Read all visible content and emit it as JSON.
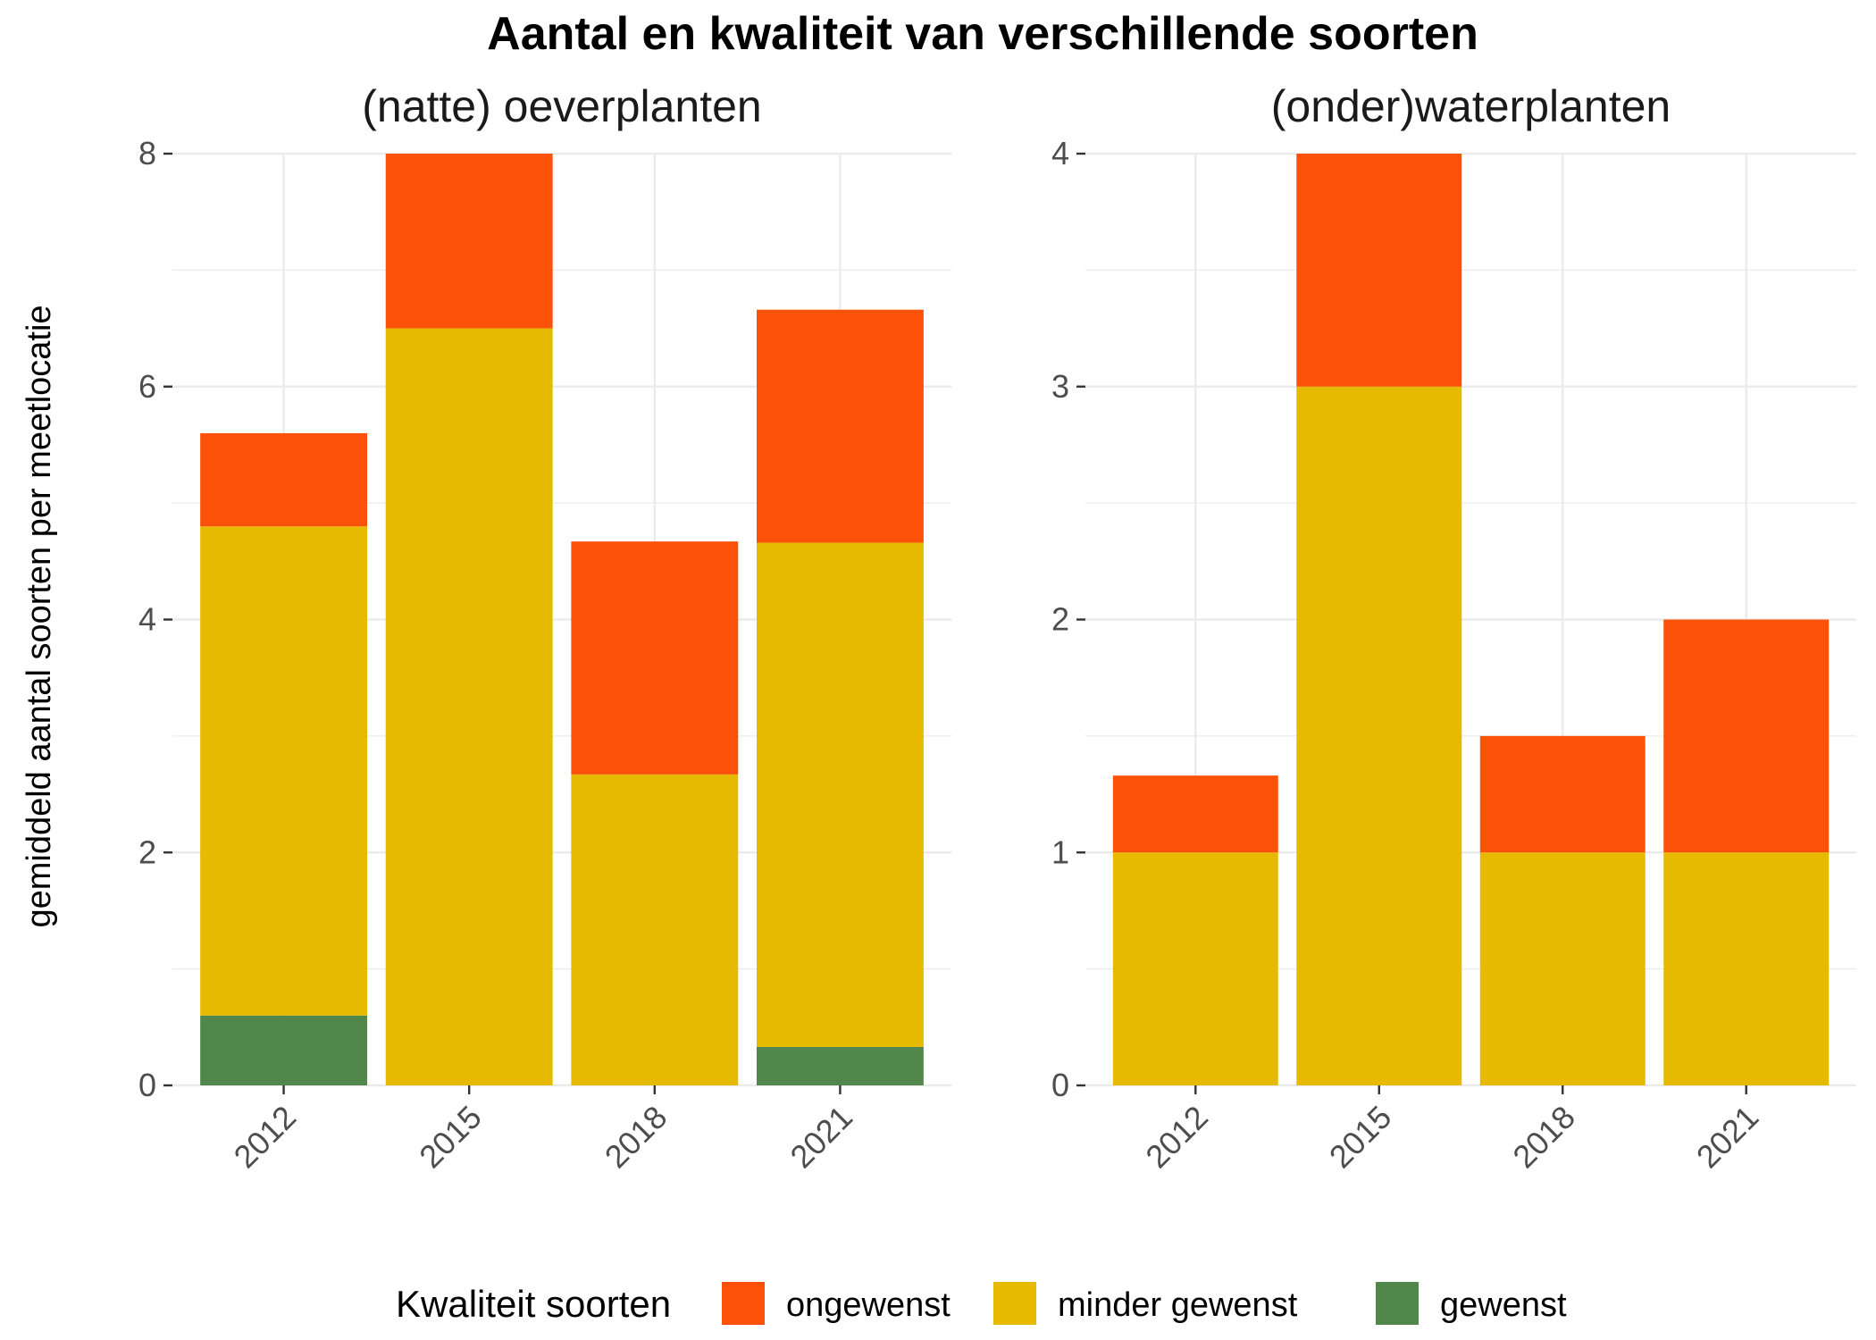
{
  "chart_data": {
    "type": "bar",
    "stacked": true,
    "title": "Aantal en kwaliteit van verschillende soorten",
    "ylabel": "gemiddeld aantal soorten per meetlocatie",
    "xlabel": "",
    "grid": true,
    "legend": {
      "title": "Kwaliteit soorten",
      "position": "bottom",
      "entries": [
        {
          "name": "ongewenst",
          "color": "#FC5108"
        },
        {
          "name": "minder gewenst",
          "color": "#E6BA00"
        },
        {
          "name": "gewenst",
          "color": "#52874C"
        }
      ]
    },
    "panels": [
      {
        "title": "(natte) oeverplanten",
        "categories": [
          "2012",
          "2015",
          "2018",
          "2021"
        ],
        "ylim": [
          0,
          8
        ],
        "yticks": [
          "0",
          "2",
          "4",
          "6",
          "8"
        ],
        "series": [
          {
            "name": "gewenst",
            "color": "#52874C",
            "values": [
              0.6,
              0,
              0,
              0.33
            ]
          },
          {
            "name": "minder gewenst",
            "color": "#E6BA00",
            "values": [
              4.2,
              6.5,
              2.67,
              4.33
            ]
          },
          {
            "name": "ongewenst",
            "color": "#FC5108",
            "values": [
              0.8,
              1.5,
              2.0,
              2.0
            ]
          }
        ]
      },
      {
        "title": "(onder)waterplanten",
        "categories": [
          "2012",
          "2015",
          "2018",
          "2021"
        ],
        "ylim": [
          0,
          4
        ],
        "yticks": [
          "0",
          "1",
          "2",
          "3",
          "4"
        ],
        "series": [
          {
            "name": "gewenst",
            "color": "#52874C",
            "values": [
              0,
              0,
              0,
              0
            ]
          },
          {
            "name": "minder gewenst",
            "color": "#E6BA00",
            "values": [
              1.0,
              3.0,
              1.0,
              1.0
            ]
          },
          {
            "name": "ongewenst",
            "color": "#FC5108",
            "values": [
              0.33,
              1.0,
              0.5,
              1.0
            ]
          }
        ]
      }
    ]
  }
}
